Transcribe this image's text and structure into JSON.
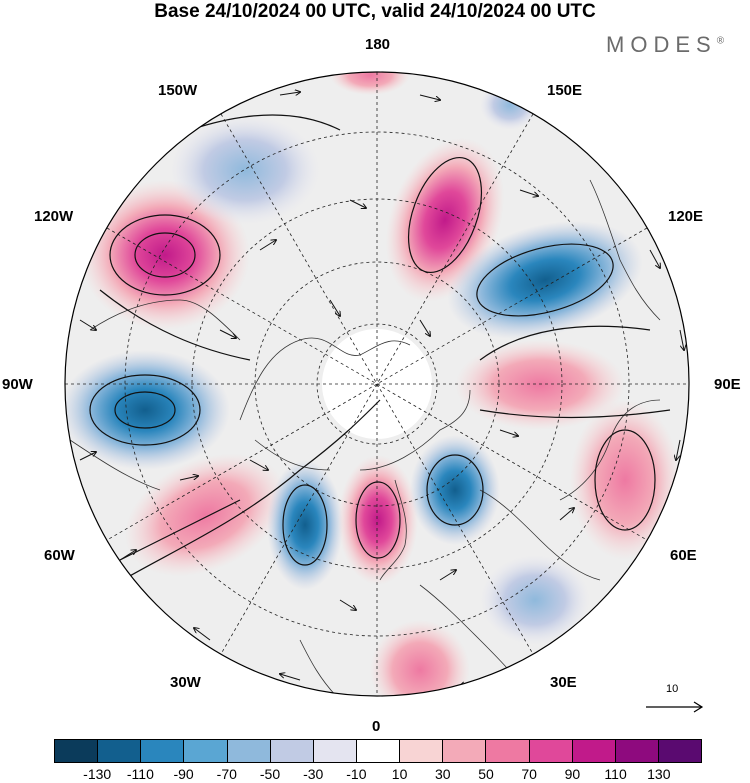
{
  "header": {
    "title": "Base 24/10/2024 00 UTC, valid 24/10/2024 00 UTC",
    "brand": "MODES",
    "brand_mark": "®"
  },
  "map": {
    "projection": "north-polar-stereographic",
    "longitude_labels": {
      "top": "180",
      "upper_right": "150E",
      "right_upper": "120E",
      "right": "90E",
      "right_lower": "60E",
      "lower_right": "30E",
      "bottom": "0",
      "lower_left": "30W",
      "left_lower": "60W",
      "left": "90W",
      "left_upper": "120W",
      "upper_left": "150W"
    },
    "reference_vector": {
      "label": "10"
    }
  },
  "colorbar": {
    "tick_labels": [
      "-130",
      "-110",
      "-90",
      "-70",
      "-50",
      "-30",
      "-10",
      "10",
      "30",
      "50",
      "70",
      "90",
      "110",
      "130"
    ],
    "colors": [
      "#0b3b5b",
      "#125f8e",
      "#2a86bd",
      "#5aa6d3",
      "#8fb9dc",
      "#c1cbe4",
      "#e4e4f0",
      "#ffffff",
      "#f8d4d4",
      "#f3aab8",
      "#ee79a2",
      "#e0489a",
      "#c11a8a",
      "#8e0a7e",
      "#5a0a70"
    ]
  }
}
